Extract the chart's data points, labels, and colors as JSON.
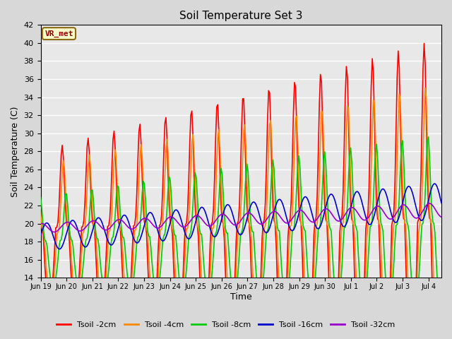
{
  "title": "Soil Temperature Set 3",
  "xlabel": "Time",
  "ylabel": "Soil Temperature (C)",
  "ylim": [
    14,
    42
  ],
  "yticks": [
    14,
    16,
    18,
    20,
    22,
    24,
    26,
    28,
    30,
    32,
    34,
    36,
    38,
    40,
    42
  ],
  "bg_color": "#d8d8d8",
  "plot_bg": "#e8e8e8",
  "grid_color": "#ffffff",
  "label_box_text": "VR_met",
  "label_box_bg": "#ffffcc",
  "label_box_edge": "#8b6914",
  "legend_entries": [
    "Tsoil -2cm",
    "Tsoil -4cm",
    "Tsoil -8cm",
    "Tsoil -16cm",
    "Tsoil -32cm"
  ],
  "line_colors": [
    "#ff0000",
    "#ff8800",
    "#00cc00",
    "#0000cc",
    "#9900cc"
  ],
  "line_widths": [
    1.2,
    1.2,
    1.2,
    1.2,
    1.2
  ],
  "xtick_labels": [
    "Jun 19",
    "Jun 20",
    "Jun 21",
    "Jun 22",
    "Jun 23",
    "Jun 24",
    "Jun 25",
    "Jun 26",
    "Jun 27",
    "Jun 28",
    "Jun 29",
    "Jun 30",
    "Jul 1",
    "Jul 2",
    "Jul 3",
    "Jul 4"
  ]
}
